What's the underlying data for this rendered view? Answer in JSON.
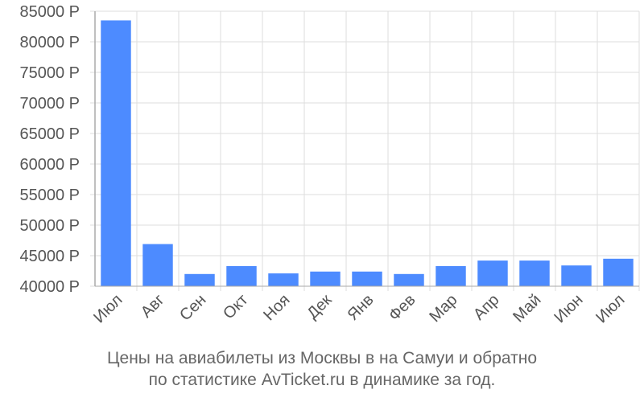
{
  "colors": {
    "bar": "#4d8bff",
    "grid": "#dddddd",
    "axis": "#aaaaaa",
    "text": "#555555"
  },
  "caption": {
    "line1": "Цены на авиабилеты из Москвы в на Самуи и обратно",
    "line2": "по статистике AvTicket.ru в динамике за год."
  },
  "chart_data": {
    "type": "bar",
    "categories": [
      "Июл",
      "Авг",
      "Сен",
      "Окт",
      "Ноя",
      "Дек",
      "Янв",
      "Фев",
      "Мар",
      "Апр",
      "Май",
      "Июн",
      "Июл"
    ],
    "values": [
      83500,
      46900,
      42000,
      43300,
      42100,
      42400,
      42400,
      42000,
      43300,
      44200,
      44200,
      43400,
      44500
    ],
    "ylim": [
      40000,
      85000
    ],
    "yticks": [
      40000,
      45000,
      50000,
      55000,
      60000,
      65000,
      70000,
      75000,
      80000,
      85000
    ],
    "ytick_labels": [
      "40000 Р",
      "45000 Р",
      "50000 Р",
      "55000 Р",
      "60000 Р",
      "65000 Р",
      "70000 Р",
      "75000 Р",
      "80000 Р",
      "85000 Р"
    ],
    "grid": true,
    "title": "",
    "xlabel": "",
    "ylabel": ""
  }
}
